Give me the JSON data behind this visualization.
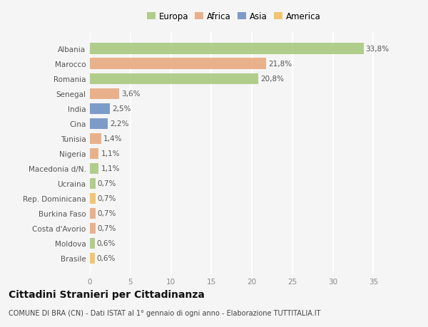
{
  "countries": [
    "Albania",
    "Marocco",
    "Romania",
    "Senegal",
    "India",
    "Cina",
    "Tunisia",
    "Nigeria",
    "Macedonia d/N.",
    "Ucraina",
    "Rep. Dominicana",
    "Burkina Faso",
    "Costa d'Avorio",
    "Moldova",
    "Brasile"
  ],
  "values": [
    33.8,
    21.8,
    20.8,
    3.6,
    2.5,
    2.2,
    1.4,
    1.1,
    1.1,
    0.7,
    0.7,
    0.7,
    0.7,
    0.6,
    0.6
  ],
  "labels": [
    "33,8%",
    "21,8%",
    "20,8%",
    "3,6%",
    "2,5%",
    "2,2%",
    "1,4%",
    "1,1%",
    "1,1%",
    "0,7%",
    "0,7%",
    "0,7%",
    "0,7%",
    "0,6%",
    "0,6%"
  ],
  "colors": [
    "#a8c87e",
    "#e8a87c",
    "#a8c87e",
    "#e8a87c",
    "#6b8fc2",
    "#6b8fc2",
    "#e8a87c",
    "#e8a87c",
    "#a8c87e",
    "#a8c87e",
    "#f0c060",
    "#e8a87c",
    "#e8a87c",
    "#a8c87e",
    "#f0c060"
  ],
  "continent_colors": {
    "Europa": "#a8c87e",
    "Africa": "#e8a87c",
    "Asia": "#6b8fc2",
    "America": "#f0c060"
  },
  "title": "Cittadini Stranieri per Cittadinanza",
  "subtitle": "COMUNE DI BRA (CN) - Dati ISTAT al 1° gennaio di ogni anno - Elaborazione TUTTITALIA.IT",
  "xlim": [
    0,
    37
  ],
  "xticks": [
    0,
    5,
    10,
    15,
    20,
    25,
    30,
    35
  ],
  "background_color": "#f5f5f5",
  "bar_height": 0.72,
  "grid_color": "#ffffff",
  "bar_label_fontsize": 7.5,
  "ytick_fontsize": 7.5,
  "xtick_fontsize": 7.5,
  "title_fontsize": 10,
  "subtitle_fontsize": 7,
  "legend_fontsize": 8.5
}
